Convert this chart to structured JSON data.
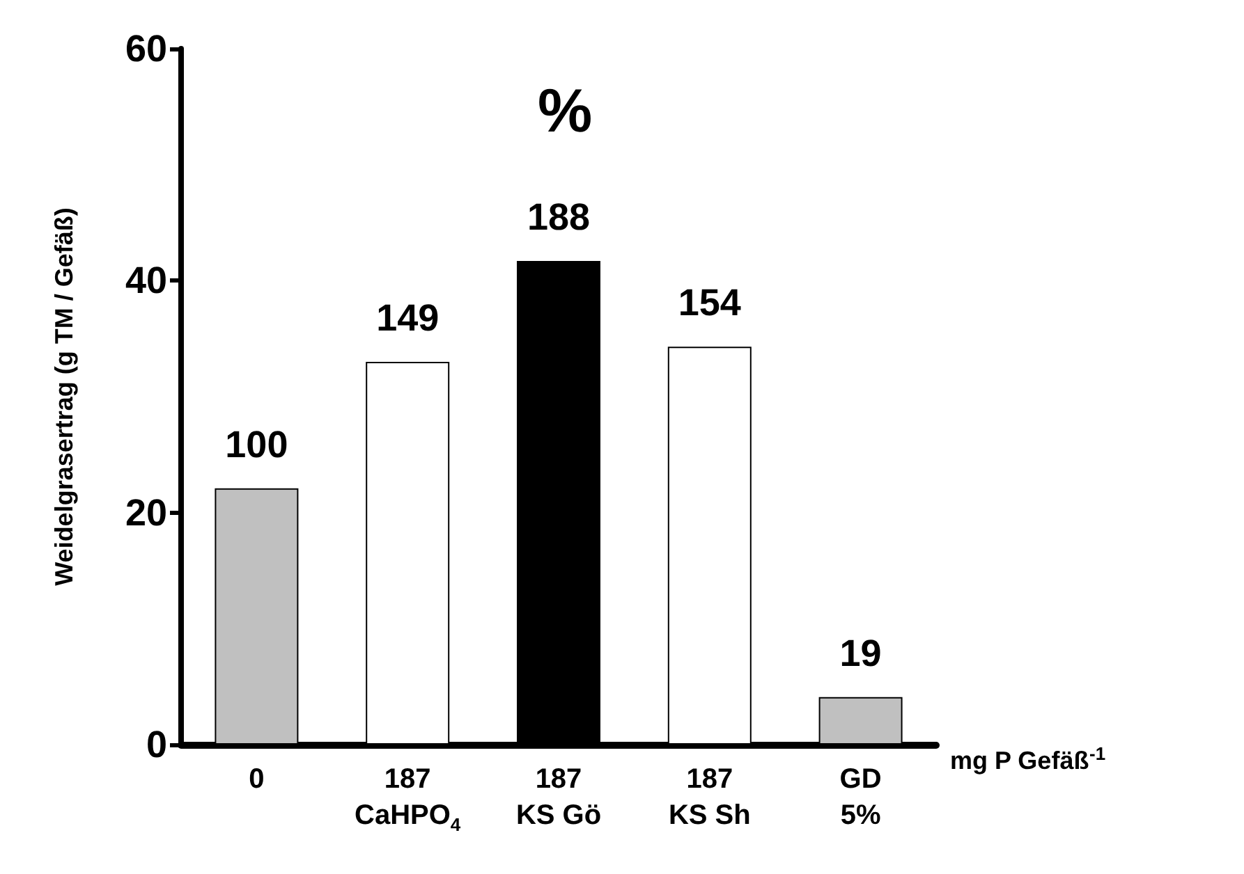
{
  "chart_data": {
    "type": "bar",
    "categories": [
      "0",
      "187\nCaHPO$_{4}$",
      "187\nKS Gö",
      "187\nKS Sh",
      "GD\n5%"
    ],
    "values": [
      22.1,
      33.0,
      41.7,
      34.3,
      4.1
    ],
    "colors": [
      "#c0c0c0",
      "#ffffff",
      "#000000",
      "#ffffff",
      "#c0c0c0"
    ],
    "xlabel": "mg P Gefäß$^{-1}$",
    "ylabel": "Weidelgrasertrag (g TM / Gefäß)",
    "annotations": [
      "%",
      {
        "text": "100",
        "x": "0",
        "y": 22.1
      },
      {
        "text": "149",
        "x": "187\nCaHPO$_{4}$",
        "y": 33.0
      },
      {
        "text": "188",
        "x": "187\nKS Gö",
        "y": 41.7
      },
      {
        "text": "154",
        "x": "187\nKS Sh",
        "y": 34.3
      },
      {
        "text": "19",
        "x": "GD\n5%",
        "y": 4.1
      }
    ],
    "ylim": [
      0,
      60
    ],
    "yticks": [
      0,
      20,
      40,
      60
    ],
    "grid": false
  }
}
